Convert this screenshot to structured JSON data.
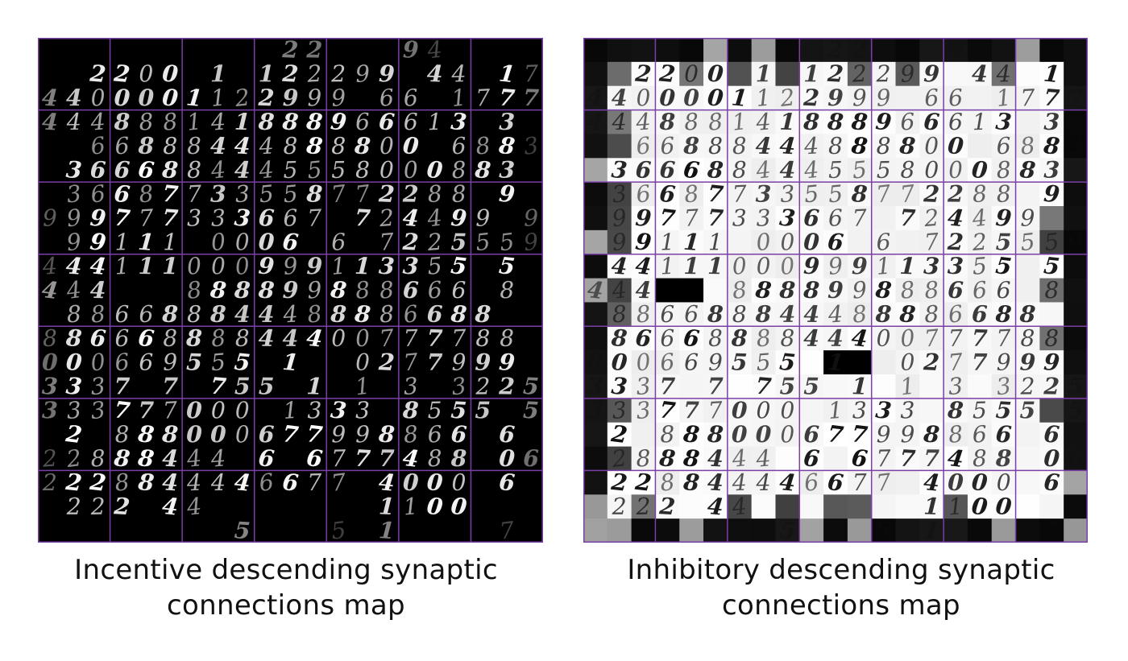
{
  "figure": {
    "left_panel": {
      "caption_line1": "Incentive descending synaptic",
      "caption_line2": "connections map",
      "background": "#000000",
      "digit_color": "#ffffff",
      "grid_color": "#7b3fa8"
    },
    "right_panel": {
      "caption_line1": "Inhibitory descending synaptic",
      "caption_line2": "connections map",
      "background": "#000000",
      "digit_color": "#111111",
      "grid_color": "#7b3fa8"
    }
  }
}
